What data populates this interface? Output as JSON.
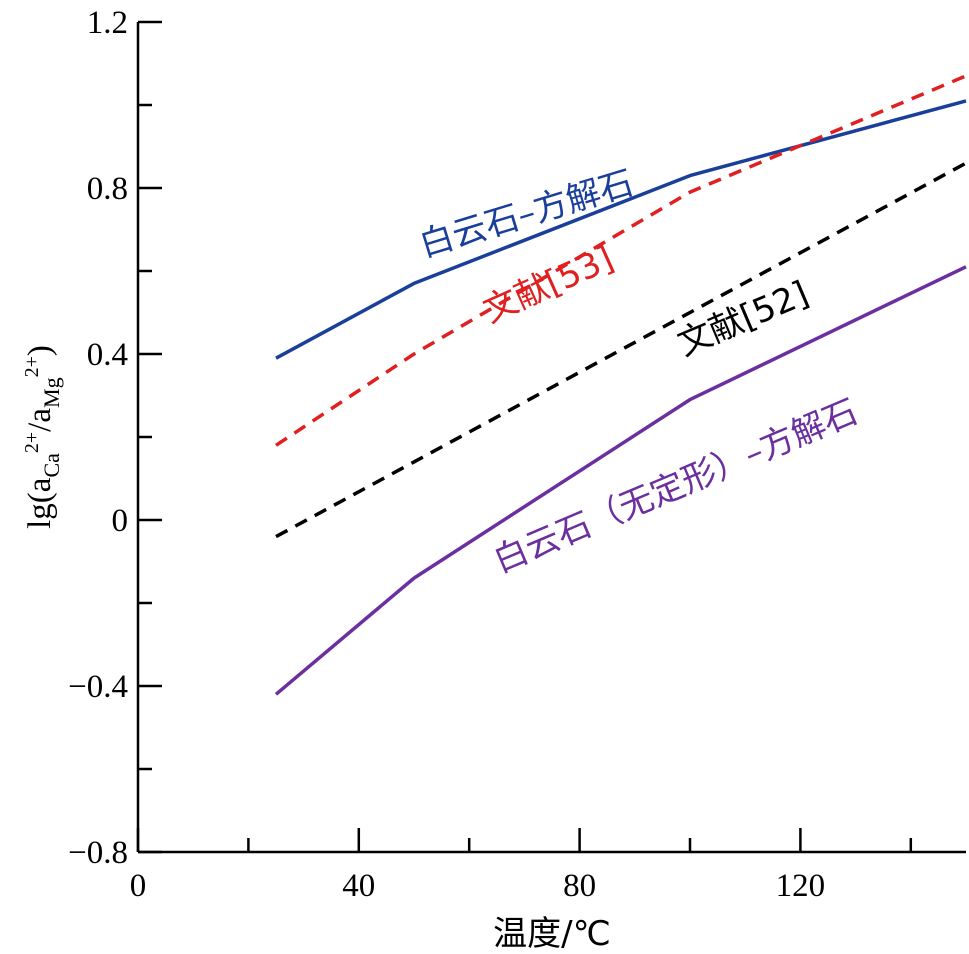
{
  "chart_data": {
    "type": "line",
    "xlabel": "温度/℃",
    "ylabel": "lg(a",
    "ylabel_sub1": "Ca",
    "ylabel_sup1": "2+",
    "ylabel_mid": "/a",
    "ylabel_sub2": "Mg",
    "ylabel_sup2": "2+",
    "ylabel_end": ")",
    "xlim": [
      0,
      150
    ],
    "ylim": [
      -0.8,
      1.2
    ],
    "x_major_ticks": [
      0,
      40,
      80,
      120
    ],
    "x_tick_labels": [
      "0",
      "40",
      "80",
      "120"
    ],
    "x_minor_ticks": [
      20,
      60,
      100,
      140
    ],
    "y_major_ticks": [
      -0.8,
      -0.4,
      0,
      0.4,
      0.8,
      1.2
    ],
    "y_tick_labels": [
      "−0.8",
      "−0.4",
      "0",
      "0.4",
      "0.8",
      "1.2"
    ],
    "y_minor_ticks": [
      -0.6,
      -0.2,
      0.2,
      0.6,
      1.0
    ],
    "grid": false,
    "series": [
      {
        "label": "白云石–方解石",
        "color": "#1a3f9a",
        "style": "solid",
        "x": [
          25,
          50,
          100,
          150
        ],
        "y": [
          0.39,
          0.57,
          0.83,
          1.01
        ]
      },
      {
        "label": "文献[53]",
        "color": "#e02020",
        "style": "dashed",
        "x": [
          25,
          50,
          100,
          150
        ],
        "y": [
          0.18,
          0.4,
          0.79,
          1.07
        ]
      },
      {
        "label": "文献[52]",
        "color": "#000000",
        "style": "dashed",
        "x": [
          25,
          50,
          100,
          150
        ],
        "y": [
          -0.04,
          0.14,
          0.5,
          0.86
        ]
      },
      {
        "label": "白云石（无定形）–方解石",
        "color": "#6b2fa0",
        "style": "solid",
        "x": [
          25,
          50,
          100,
          150
        ],
        "y": [
          -0.42,
          -0.14,
          0.29,
          0.61
        ]
      }
    ]
  }
}
